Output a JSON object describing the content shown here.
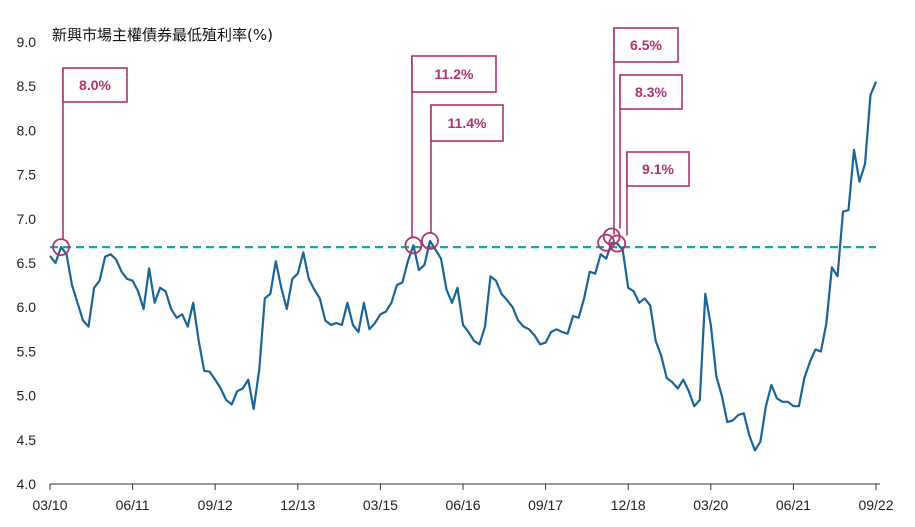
{
  "chart_data": {
    "type": "line",
    "title": "新興市場主權債券最低殖利率(%)",
    "xlabel": "",
    "ylabel": "",
    "ylim": [
      4.0,
      9.0
    ],
    "yticks": [
      "9.0",
      "8.5",
      "8.0",
      "7.5",
      "7.0",
      "6.5",
      "6.0",
      "5.5",
      "5.0",
      "4.5",
      "4.0"
    ],
    "xticks": [
      "03/10",
      "06/11",
      "09/12",
      "12/13",
      "03/15",
      "06/16",
      "09/17",
      "12/18",
      "03/20",
      "06/21",
      "09/22"
    ],
    "grid": false,
    "colors": {
      "series": "#1a6496",
      "threshold": "#1fa5a0",
      "annotation": "#b0336e"
    },
    "threshold": 6.68,
    "series": [
      {
        "x": [
          "2010-03",
          "2010-04",
          "2010-05",
          "2010-06",
          "2010-07",
          "2010-08",
          "2010-09",
          "2010-10",
          "2010-11",
          "2010-12",
          "2011-01",
          "2011-02",
          "2011-03",
          "2011-04",
          "2011-05",
          "2011-06",
          "2011-07",
          "2011-08",
          "2011-09",
          "2011-10",
          "2011-11",
          "2011-12",
          "2012-01",
          "2012-02",
          "2012-03",
          "2012-04",
          "2012-05",
          "2012-06",
          "2012-07",
          "2012-08",
          "2012-09",
          "2012-10",
          "2012-11",
          "2012-12",
          "2013-01",
          "2013-02",
          "2013-03",
          "2013-04",
          "2013-05",
          "2013-06",
          "2013-07",
          "2013-08",
          "2013-09",
          "2013-10",
          "2013-11",
          "2013-12",
          "2014-01",
          "2014-02",
          "2014-03",
          "2014-04",
          "2014-05",
          "2014-06",
          "2014-07",
          "2014-08",
          "2014-09",
          "2014-10",
          "2014-11",
          "2014-12",
          "2015-01",
          "2015-02",
          "2015-03",
          "2015-04",
          "2015-05",
          "2015-06",
          "2015-07",
          "2015-08",
          "2015-09",
          "2015-10",
          "2015-11",
          "2015-12",
          "2016-01",
          "2016-02",
          "2016-03",
          "2016-04",
          "2016-05",
          "2016-06",
          "2016-07",
          "2016-08",
          "2016-09",
          "2016-10",
          "2016-11",
          "2016-12",
          "2017-01",
          "2017-02",
          "2017-03",
          "2017-04",
          "2017-05",
          "2017-06",
          "2017-07",
          "2017-08",
          "2017-09",
          "2017-10",
          "2017-11",
          "2017-12",
          "2018-01",
          "2018-02",
          "2018-03",
          "2018-04",
          "2018-05",
          "2018-06",
          "2018-07",
          "2018-08",
          "2018-09",
          "2018-10",
          "2018-11",
          "2018-12",
          "2019-01",
          "2019-02",
          "2019-03",
          "2019-04",
          "2019-05",
          "2019-06",
          "2019-07",
          "2019-08",
          "2019-09",
          "2019-10",
          "2019-11",
          "2019-12",
          "2020-01",
          "2020-02",
          "2020-03",
          "2020-04",
          "2020-05",
          "2020-06",
          "2020-07",
          "2020-08",
          "2020-09",
          "2020-10",
          "2020-11",
          "2020-12",
          "2021-01",
          "2021-02",
          "2021-03",
          "2021-04",
          "2021-05",
          "2021-06",
          "2021-07",
          "2021-08",
          "2021-09",
          "2021-10",
          "2021-11",
          "2021-12",
          "2022-01",
          "2022-02",
          "2022-03",
          "2022-04",
          "2022-05",
          "2022-06",
          "2022-07",
          "2022-08",
          "2022-09"
        ],
        "y": [
          6.58,
          6.5,
          6.68,
          6.6,
          6.25,
          6.05,
          5.85,
          5.78,
          6.22,
          6.3,
          6.57,
          6.6,
          6.54,
          6.4,
          6.32,
          6.3,
          6.18,
          5.98,
          6.44,
          6.05,
          6.22,
          6.18,
          5.98,
          5.88,
          5.92,
          5.78,
          6.05,
          5.62,
          5.28,
          5.27,
          5.18,
          5.08,
          4.95,
          4.9,
          5.05,
          5.08,
          5.18,
          4.85,
          5.3,
          6.1,
          6.15,
          6.52,
          6.22,
          5.98,
          6.32,
          6.38,
          6.62,
          6.32,
          6.2,
          6.1,
          5.85,
          5.8,
          5.82,
          5.8,
          6.05,
          5.8,
          5.72,
          6.05,
          5.75,
          5.82,
          5.92,
          5.95,
          6.05,
          6.25,
          6.28,
          6.52,
          6.7,
          6.42,
          6.48,
          6.75,
          6.65,
          6.55,
          6.2,
          6.05,
          6.22,
          5.8,
          5.72,
          5.62,
          5.58,
          5.78,
          6.35,
          6.3,
          6.15,
          6.08,
          6.0,
          5.85,
          5.78,
          5.75,
          5.68,
          5.58,
          5.6,
          5.72,
          5.75,
          5.72,
          5.7,
          5.9,
          5.88,
          6.1,
          6.4,
          6.38,
          6.6,
          6.55,
          6.73,
          6.72,
          6.65,
          6.22,
          6.18,
          6.05,
          6.1,
          6.02,
          5.62,
          5.45,
          5.2,
          5.15,
          5.08,
          5.18,
          5.05,
          4.88,
          4.95,
          6.15,
          5.8,
          5.22,
          5.0,
          4.7,
          4.72,
          4.78,
          4.8,
          4.55,
          4.38,
          4.48,
          4.88,
          5.12,
          4.97,
          4.93,
          4.93,
          4.88,
          4.88,
          5.2,
          5.38,
          5.52,
          5.5,
          5.82,
          6.45,
          6.35,
          7.08,
          7.1,
          7.78,
          7.42,
          7.62,
          8.4,
          8.55
        ]
      }
    ],
    "annotations": [
      {
        "label": "8.0%",
        "x": "2010-05",
        "y": 6.68
      },
      {
        "label": "11.2%",
        "x": "2015-09",
        "y": 6.7
      },
      {
        "label": "11.4%",
        "x": "2015-12",
        "y": 6.75
      },
      {
        "label": "6.5%",
        "x": "2018-08",
        "y": 6.73
      },
      {
        "label": "8.3%",
        "x": "2018-09",
        "y": 6.8
      },
      {
        "label": "9.1%",
        "x": "2018-10",
        "y": 6.72
      }
    ]
  }
}
